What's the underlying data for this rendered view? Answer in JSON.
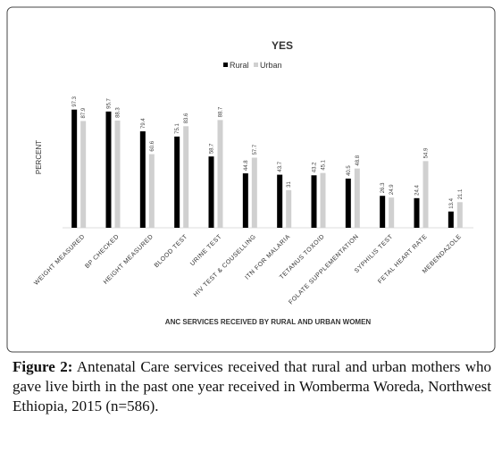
{
  "chart_data": {
    "type": "bar",
    "title": "YES",
    "x_label": "ANC SERVICES RECEIVED BY RURAL AND URBAN WOMEN",
    "y_label": "PERCENT",
    "categories": [
      "WEIGHT MEASURED",
      "BP CHECKED",
      "HEIGHT MEASURED",
      "BLOOD TEST",
      "URINE TEST",
      "HIV TEST & COUSELLING",
      "ITN FOR MALARIA",
      "TETANUS TOXOID",
      "FOLATE SUPPLEMENTATION",
      "SYPHILIS TEST",
      "FETAL HEART RATE",
      "MEBENDAZOLE"
    ],
    "series": [
      {
        "name": "Rural",
        "color": "#000000",
        "values": [
          97.3,
          95.7,
          79.4,
          75.1,
          58.7,
          44.8,
          43.7,
          43.2,
          40.5,
          26.3,
          24.4,
          13.4
        ]
      },
      {
        "name": "Urban",
        "color": "#d0d0d0",
        "values": [
          87.9,
          88.3,
          60.6,
          83.6,
          88.7,
          57.7,
          31,
          45.1,
          48.8,
          24.9,
          54.9,
          21.1
        ]
      }
    ],
    "ylim": [
      0,
      100
    ],
    "legend": "top"
  },
  "caption": {
    "label": "Figure 2:",
    "text": "Antenatal Care services received that rural and urban mothers who gave live birth in the past one year received in Womberma Woreda, Northwest Ethiopia, 2015 (n=586)."
  }
}
